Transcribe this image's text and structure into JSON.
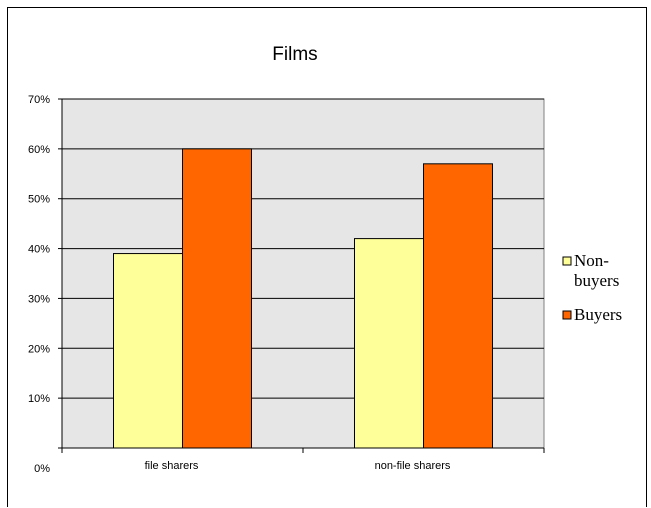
{
  "chart_data": {
    "type": "bar",
    "title": "Films",
    "xlabel": "",
    "ylabel": "",
    "categories": [
      "file sharers",
      "non-file sharers"
    ],
    "series": [
      {
        "name": "Non-buyers",
        "legend_lines": [
          "Non-",
          "buyers"
        ],
        "color": "#FFFF99",
        "values": [
          0.39,
          0.42
        ]
      },
      {
        "name": "Buyers",
        "legend_lines": [
          "Buyers"
        ],
        "color": "#FF6600",
        "values": [
          0.6,
          0.57
        ]
      }
    ],
    "ylim": [
      0,
      0.7
    ],
    "yticks": [
      0,
      0.1,
      0.2,
      0.3,
      0.4,
      0.5,
      0.6,
      0.7
    ],
    "ytick_labels": [
      "0%",
      "10%",
      "20%",
      "30%",
      "40%",
      "50%",
      "60%",
      "70%"
    ],
    "grid": true,
    "legend": "right",
    "plot_background": "#E6E6E6"
  }
}
